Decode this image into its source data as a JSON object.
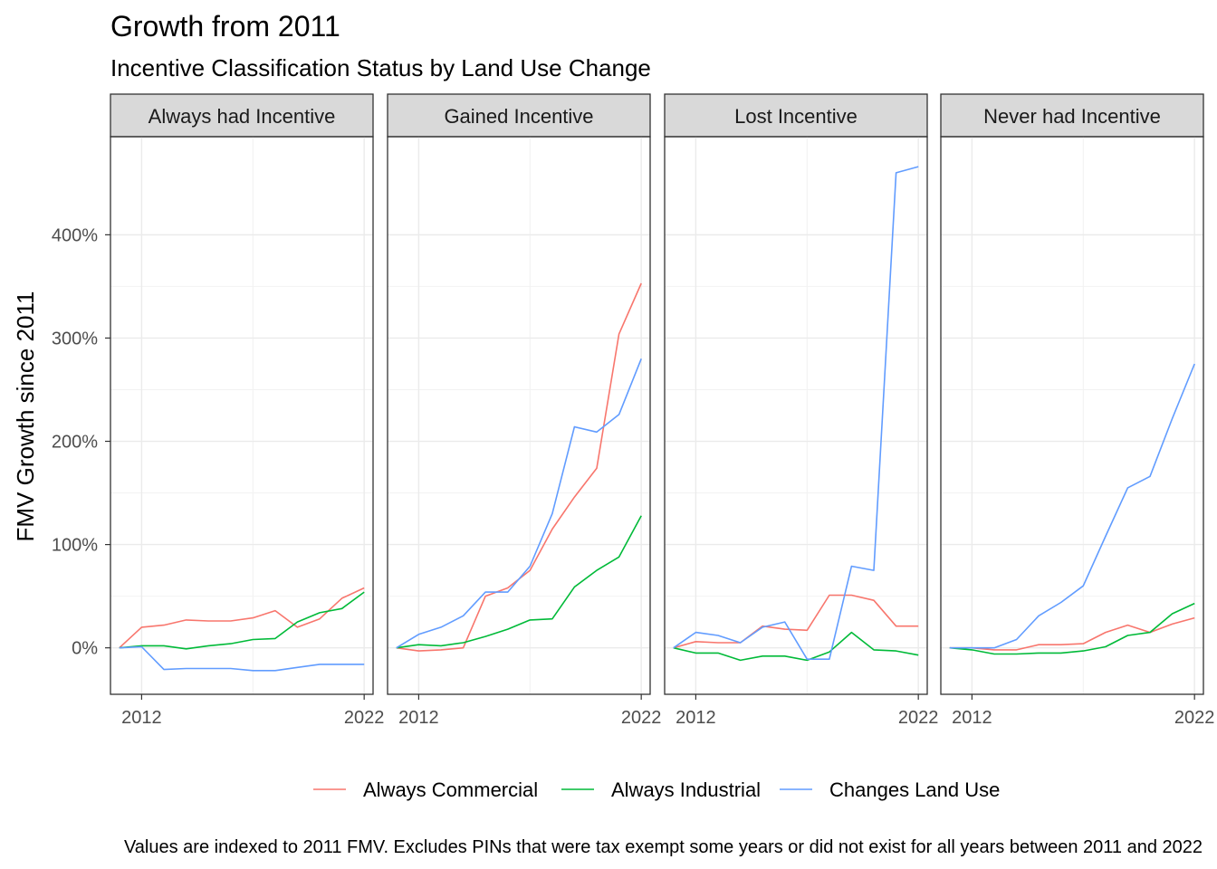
{
  "chart_data": {
    "type": "line",
    "title": "Growth from 2011",
    "subtitle": "Incentive Classification Status by Land Use Change",
    "ylabel": "FMV Growth since 2011",
    "xlabel": "",
    "caption": "Values are indexed to 2011 FMV. Excludes PINs that were tax exempt some years or did not exist for all years between 2011 and 2022",
    "x": [
      2011,
      2012,
      2013,
      2014,
      2015,
      2016,
      2017,
      2018,
      2019,
      2020,
      2021,
      2022
    ],
    "xlim": [
      2010.6,
      2022.4
    ],
    "ylim": [
      -45,
      495
    ],
    "x_ticks": [
      2012,
      2022
    ],
    "y_ticks": [
      0,
      100,
      200,
      300,
      400
    ],
    "y_tick_labels": [
      "0%",
      "100%",
      "200%",
      "300%",
      "400%"
    ],
    "grid": true,
    "legend_position": "bottom",
    "colors": {
      "Always Commercial": "#F8766D",
      "Always Industrial": "#00BA38",
      "Changes Land Use": "#619CFF"
    },
    "legend": [
      "Always Commercial",
      "Always Industrial",
      "Changes Land Use"
    ],
    "panels": [
      {
        "label": "Always had Incentive",
        "series": [
          {
            "name": "Always Commercial",
            "values": [
              0,
              20,
              22,
              27,
              26,
              26,
              29,
              36,
              20,
              28,
              48,
              58
            ]
          },
          {
            "name": "Always Industrial",
            "values": [
              0,
              2,
              2,
              -1,
              2,
              4,
              8,
              9,
              25,
              34,
              38,
              54
            ]
          },
          {
            "name": "Changes Land Use",
            "values": [
              0,
              1,
              -21,
              -20,
              -20,
              -20,
              -22,
              -22,
              -19,
              -16,
              -16,
              -16
            ]
          }
        ]
      },
      {
        "label": "Gained Incentive",
        "series": [
          {
            "name": "Always Commercial",
            "values": [
              0,
              -3,
              -2,
              0,
              50,
              58,
              75,
              115,
              146,
              174,
              304,
              353
            ]
          },
          {
            "name": "Always Industrial",
            "values": [
              0,
              3,
              2,
              5,
              11,
              18,
              27,
              28,
              59,
              75,
              88,
              128
            ]
          },
          {
            "name": "Changes Land Use",
            "values": [
              0,
              13,
              20,
              31,
              54,
              54,
              79,
              130,
              214,
              209,
              226,
              280
            ]
          }
        ]
      },
      {
        "label": "Lost Incentive",
        "series": [
          {
            "name": "Always Commercial",
            "values": [
              0,
              6,
              5,
              5,
              21,
              18,
              17,
              51,
              51,
              46,
              21,
              21
            ]
          },
          {
            "name": "Always Industrial",
            "values": [
              0,
              -5,
              -5,
              -12,
              -8,
              -8,
              -12,
              -4,
              15,
              -2,
              -3,
              -7
            ]
          },
          {
            "name": "Changes Land Use",
            "values": [
              0,
              15,
              12,
              5,
              20,
              25,
              -11,
              -11,
              79,
              75,
              460,
              466
            ]
          }
        ]
      },
      {
        "label": "Never had Incentive",
        "series": [
          {
            "name": "Always Commercial",
            "values": [
              0,
              0,
              -2,
              -2,
              3,
              3,
              4,
              15,
              22,
              15,
              23,
              29
            ]
          },
          {
            "name": "Always Industrial",
            "values": [
              0,
              -2,
              -6,
              -6,
              -5,
              -5,
              -3,
              1,
              12,
              15,
              33,
              43
            ]
          },
          {
            "name": "Changes Land Use",
            "values": [
              0,
              0,
              0,
              8,
              31,
              44,
              60,
              108,
              155,
              166,
              222,
              275
            ]
          }
        ]
      }
    ]
  }
}
